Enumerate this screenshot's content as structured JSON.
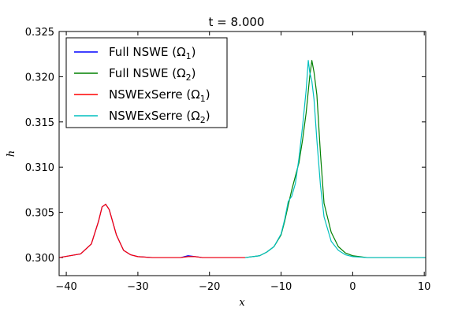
{
  "chart_data": {
    "type": "line",
    "title": "t = 8.000",
    "xlabel": "x",
    "ylabel": "h",
    "xlim": [
      -41,
      10.2
    ],
    "ylim": [
      0.298,
      0.325
    ],
    "xticks": [
      -40,
      -30,
      -20,
      -10,
      0,
      10
    ],
    "xtick_labels": [
      "−40",
      "−30",
      "−20",
      "−10",
      "0",
      "10"
    ],
    "yticks": [
      0.3,
      0.305,
      0.31,
      0.315,
      0.32,
      0.325
    ],
    "ytick_labels": [
      "0.300",
      "0.305",
      "0.310",
      "0.315",
      "0.320",
      "0.325"
    ],
    "grid": false,
    "legend_position": "top-left",
    "series": [
      {
        "name": "Full NSWE (Ω1)",
        "legend": {
          "base": "Full NSWE (Ω",
          "sub": "1",
          "close": ")"
        },
        "color": "#0000ff",
        "x": [
          -41,
          -38,
          -36.5,
          -35.5,
          -35,
          -34.5,
          -34,
          -33,
          -32,
          -31,
          -30,
          -28,
          -26,
          -24,
          -23,
          -22,
          -21,
          -20,
          -18,
          -16,
          -15
        ],
        "y": [
          0.3,
          0.3004,
          0.3015,
          0.304,
          0.3056,
          0.3059,
          0.3053,
          0.3025,
          0.3008,
          0.3003,
          0.3001,
          0.3,
          0.3,
          0.3,
          0.3002,
          0.3001,
          0.3,
          0.3,
          0.3,
          0.3,
          0.3
        ]
      },
      {
        "name": "Full NSWE (Ω2)",
        "legend": {
          "base": "Full NSWE (Ω",
          "sub": "2",
          "close": ")"
        },
        "color": "#008000",
        "x": [
          -15,
          -13,
          -12,
          -11,
          -10,
          -9.5,
          -9,
          -8.5,
          -8,
          -7.5,
          -7,
          -6.5,
          -6,
          -5.7,
          -5.4,
          -5,
          -4.5,
          -4,
          -3,
          -2,
          -1,
          0,
          2,
          4,
          6,
          8,
          10.2
        ],
        "y": [
          0.3,
          0.3002,
          0.3006,
          0.3012,
          0.3025,
          0.304,
          0.3058,
          0.3075,
          0.309,
          0.3105,
          0.313,
          0.316,
          0.32,
          0.3218,
          0.3205,
          0.318,
          0.3115,
          0.306,
          0.3028,
          0.3012,
          0.3005,
          0.3002,
          0.3,
          0.3,
          0.3,
          0.3,
          0.3
        ]
      },
      {
        "name": "NSWExSerre (Ω1)",
        "legend": {
          "base": "NSWExSerre (Ω",
          "sub": "1",
          "close": ")"
        },
        "color": "#ff0000",
        "x": [
          -41,
          -38,
          -36.5,
          -35.5,
          -35,
          -34.5,
          -34,
          -33,
          -32,
          -31,
          -30,
          -28,
          -26,
          -24,
          -23,
          -22,
          -21,
          -20,
          -18,
          -16,
          -15
        ],
        "y": [
          0.3,
          0.3004,
          0.3015,
          0.304,
          0.3056,
          0.3059,
          0.3053,
          0.3025,
          0.3008,
          0.3003,
          0.3001,
          0.3,
          0.3,
          0.3,
          0.3001,
          0.3001,
          0.3,
          0.3,
          0.3,
          0.3,
          0.3
        ]
      },
      {
        "name": "NSWExSerre (Ω2)",
        "legend": {
          "base": "NSWExSerre (Ω",
          "sub": "2",
          "close": ")"
        },
        "color": "#00bfbf",
        "x": [
          -15,
          -13,
          -12,
          -11,
          -10,
          -9.5,
          -9,
          -8.5,
          -8,
          -7.5,
          -7,
          -6.5,
          -6.2,
          -6,
          -5.7,
          -5.4,
          -5,
          -4.5,
          -4,
          -3,
          -2,
          -1,
          0,
          2,
          4,
          6,
          8,
          10.2
        ],
        "y": [
          0.3,
          0.3002,
          0.3006,
          0.3012,
          0.3026,
          0.3042,
          0.3062,
          0.3068,
          0.3082,
          0.311,
          0.3145,
          0.3185,
          0.3218,
          0.3205,
          0.3195,
          0.3175,
          0.313,
          0.308,
          0.3045,
          0.3018,
          0.3008,
          0.3003,
          0.3001,
          0.3,
          0.3,
          0.3,
          0.3,
          0.3
        ]
      }
    ]
  }
}
